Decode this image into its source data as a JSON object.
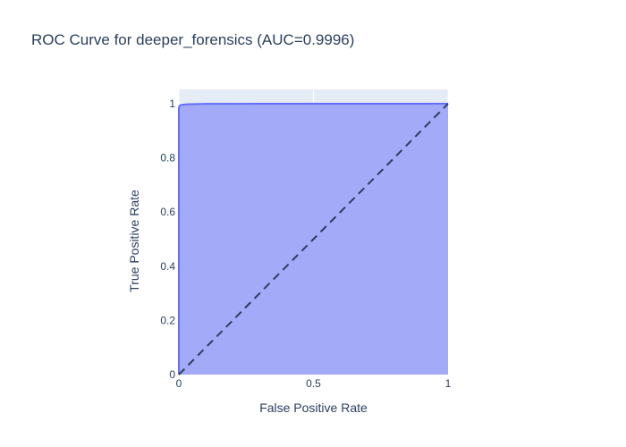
{
  "chart_data": {
    "type": "area",
    "title": "ROC Curve for deeper_forensics (AUC=0.9996)",
    "xlabel": "False Positive Rate",
    "ylabel": "True Positive Rate",
    "xlim": [
      0,
      1
    ],
    "ylim": [
      0,
      1
    ],
    "x_ticks": [
      {
        "value": 0,
        "label": "0"
      },
      {
        "value": 0.5,
        "label": "0.5"
      },
      {
        "value": 1,
        "label": "1"
      }
    ],
    "y_ticks": [
      {
        "value": 0,
        "label": "0"
      },
      {
        "value": 0.2,
        "label": "0.2"
      },
      {
        "value": 0.4,
        "label": "0.4"
      },
      {
        "value": 0.6,
        "label": "0.6"
      },
      {
        "value": 0.8,
        "label": "0.8"
      },
      {
        "value": 1,
        "label": "1"
      }
    ],
    "grid": true,
    "legend": "none",
    "series": [
      {
        "type": "roc-curve",
        "fill": "to-zero",
        "color": "#636efa",
        "fill_color": "#a3aaf8",
        "x": [
          0,
          0.0,
          0.003,
          0.01,
          0.03,
          0.1,
          0.3,
          0.6,
          1.0
        ],
        "y": [
          0,
          0.985,
          0.993,
          0.996,
          0.998,
          0.9995,
          1.0,
          1.0,
          1.0
        ]
      },
      {
        "type": "diagonal-reference",
        "dash": "dash",
        "color": "#2a3f5f",
        "x": [
          0,
          1
        ],
        "y": [
          0,
          1
        ]
      }
    ],
    "colors": {
      "plot_background": "#e5ecf6",
      "grid": "#ffffff",
      "text": "#2a3f5f"
    }
  }
}
